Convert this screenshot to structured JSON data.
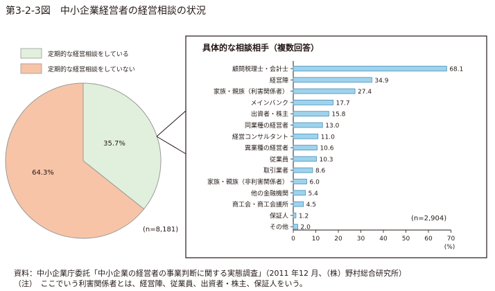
{
  "figure": {
    "title": "第3-2-3図　中小企業経営者の経営相談の状況",
    "source": "資料：中小企業庁委託「中小企業の経営者の事業判断に関する実態調査」（2011 年12 月、（株）野村総合研究所）",
    "note": "（注）　ここでいう利害関係者とは、経営陣、従業員、出資者・株主、保証人をいう。"
  },
  "chart_data": [
    {
      "type": "pie",
      "title": "",
      "labels": [
        "定期的な経営相談をしている",
        "定期的な経営相談をしていない"
      ],
      "values": [
        35.7,
        64.3
      ],
      "value_labels": [
        "35.7%",
        "64.3%"
      ],
      "colors": [
        "#e1f0dc",
        "#f7c4a7"
      ],
      "edge_color": "#9a9a9a",
      "legend": "top-left",
      "n_label": "(n=8,181)"
    },
    {
      "type": "bar",
      "orientation": "horizontal",
      "title": "具体的な相談相手（複数回答）",
      "categories": [
        "顧問税理士・会計士",
        "経営陣",
        "家族・親族（利害関係者）",
        "メインバンク",
        "出資者・株主",
        "同業種の経営者",
        "経営コンサルタント",
        "異業種の経営者",
        "従業員",
        "取引業者",
        "家族・親族（非利害関係者）",
        "他の金融機関",
        "商工会・商工会議所",
        "保証人",
        "その他"
      ],
      "values": [
        68.1,
        34.9,
        27.4,
        17.7,
        15.8,
        13.0,
        11.0,
        10.6,
        10.3,
        8.6,
        6.0,
        5.4,
        4.5,
        1.2,
        2.0
      ],
      "value_labels": [
        "68.1",
        "34.9",
        "27.4",
        "17.7",
        "15.8",
        "13.0",
        "11.0",
        "10.6",
        "10.3",
        "8.6",
        "6.0",
        "5.4",
        "4.5",
        "1.2",
        "2.0"
      ],
      "xlim": [
        0,
        70
      ],
      "xticks": [
        0,
        10,
        20,
        30,
        40,
        50,
        60,
        70
      ],
      "xunit": "(%)",
      "bar_color": "#9fd3ec",
      "bar_edge": "#4a8fb8",
      "n_label": "(n=2,904)"
    }
  ]
}
